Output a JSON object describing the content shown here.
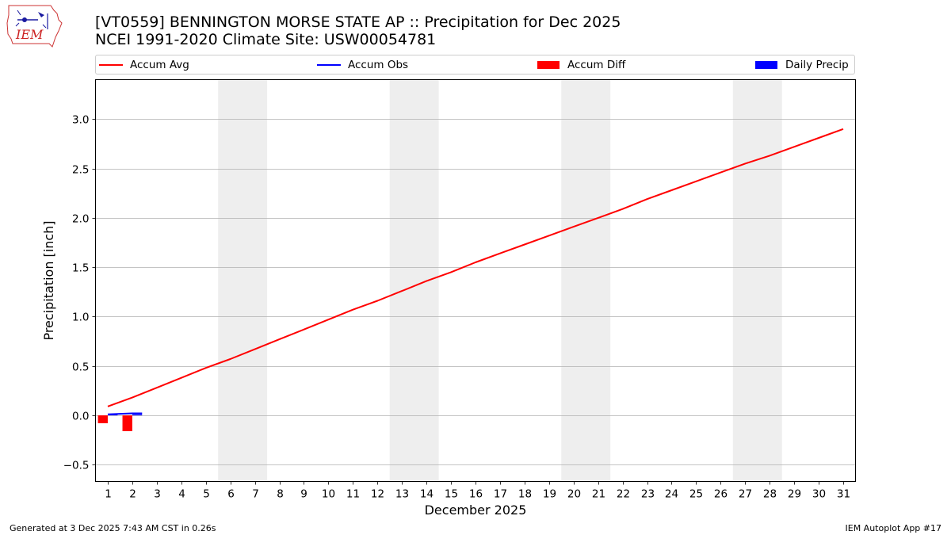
{
  "header": {
    "title": "[VT0559] BENNINGTON MORSE STATE AP :: Precipitation for Dec 2025",
    "subtitle": "NCEI 1991-2020 Climate Site: USW00054781"
  },
  "logo": {
    "text": "IEM",
    "icon": "iem-logo-icon"
  },
  "colors": {
    "accum_avg": "#ff0000",
    "accum_obs": "#0000ff",
    "accum_diff": "#ff0000",
    "daily_precip": "#0000ff",
    "weekend_band": "#eeeeee",
    "grid": "#b0b0b0"
  },
  "legend": [
    {
      "label": "Accum Avg",
      "kind": "line",
      "color": "#ff0000"
    },
    {
      "label": "Accum Obs",
      "kind": "line",
      "color": "#0000ff"
    },
    {
      "label": "Accum Diff",
      "kind": "patch",
      "color": "#ff0000"
    },
    {
      "label": "Daily Precip",
      "kind": "patch",
      "color": "#0000ff"
    }
  ],
  "chart_data": {
    "type": "line",
    "title": "[VT0559] BENNINGTON MORSE STATE AP :: Precipitation for Dec 2025",
    "subtitle": "NCEI 1991-2020 Climate Site: USW00054781",
    "xlabel": "December 2025",
    "ylabel": "Precipitation [inch]",
    "xlim": [
      0.5,
      31.5
    ],
    "ylim": [
      -0.67,
      3.4
    ],
    "grid": "y-major",
    "legend_position": "top",
    "x": [
      1,
      2,
      3,
      4,
      5,
      6,
      7,
      8,
      9,
      10,
      11,
      12,
      13,
      14,
      15,
      16,
      17,
      18,
      19,
      20,
      21,
      22,
      23,
      24,
      25,
      26,
      27,
      28,
      29,
      30,
      31
    ],
    "yticks": [
      -0.5,
      0.0,
      0.5,
      1.0,
      1.5,
      2.0,
      2.5,
      3.0
    ],
    "ytick_labels": [
      "−0.5",
      "0.0",
      "0.5",
      "1.0",
      "1.5",
      "2.0",
      "2.5",
      "3.0"
    ],
    "weekend_bands": [
      [
        5.5,
        7.5
      ],
      [
        12.5,
        14.5
      ],
      [
        19.5,
        21.5
      ],
      [
        26.5,
        28.5
      ]
    ],
    "series": [
      {
        "name": "Accum Avg",
        "kind": "line",
        "x": [
          1,
          2,
          3,
          4,
          5,
          6,
          7,
          8,
          9,
          10,
          11,
          12,
          13,
          14,
          15,
          16,
          17,
          18,
          19,
          20,
          21,
          22,
          23,
          24,
          25,
          26,
          27,
          28,
          29,
          30,
          31
        ],
        "values": [
          0.09,
          0.18,
          0.28,
          0.38,
          0.48,
          0.57,
          0.67,
          0.77,
          0.87,
          0.97,
          1.07,
          1.16,
          1.26,
          1.36,
          1.45,
          1.55,
          1.64,
          1.73,
          1.82,
          1.91,
          2.0,
          2.09,
          2.19,
          2.28,
          2.37,
          2.46,
          2.55,
          2.63,
          2.72,
          2.81,
          2.9
        ]
      },
      {
        "name": "Accum Obs",
        "kind": "line",
        "x": [
          1,
          2,
          2.4
        ],
        "values": [
          0.01,
          0.02,
          0.02
        ]
      },
      {
        "name": "Accum Diff",
        "kind": "bar",
        "x": [
          1,
          2
        ],
        "values": [
          -0.08,
          -0.16
        ]
      },
      {
        "name": "Daily Precip",
        "kind": "bar",
        "x": [
          1,
          2
        ],
        "values": [
          0.01,
          0.01
        ]
      }
    ]
  },
  "footer": {
    "left": "Generated at 3 Dec 2025 7:43 AM CST in 0.26s",
    "right": "IEM Autoplot App #17"
  }
}
